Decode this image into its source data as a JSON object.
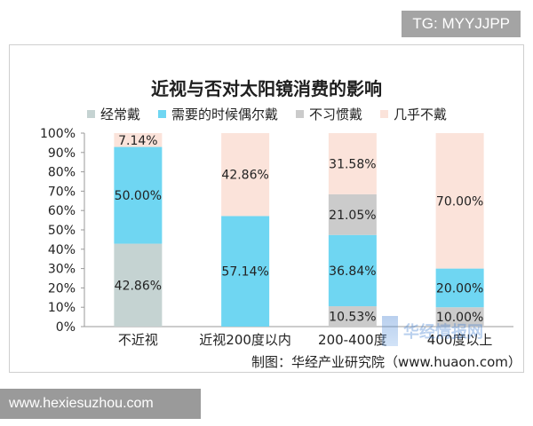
{
  "badge": "TG: MYYJJPP",
  "footer_site": "www.hexiesuzhou.com",
  "source_text": "制图：华经产业研究院（www.huaon.com）",
  "watermark_text": "华经情报网",
  "colors": {
    "often": "#c5d3d2",
    "need": "#6fd6f2",
    "not_used": "#cbcbcb",
    "rarely": "#fbe3da"
  },
  "chart_data": {
    "type": "bar",
    "stacked": true,
    "title": "近视与否对太阳镜消费的影响",
    "categories": [
      "不近视",
      "近视200度以内",
      "200-400度",
      "400度以上"
    ],
    "series": [
      {
        "name": "经常戴",
        "values": [
          42.86,
          0,
          0,
          0
        ]
      },
      {
        "name": "需要的时候偶尔戴",
        "values": [
          50.0,
          57.14,
          36.84,
          20.0
        ]
      },
      {
        "name": "不习惯戴",
        "values": [
          0,
          0,
          21.05,
          0
        ]
      },
      {
        "name": "几乎不戴",
        "values": [
          7.14,
          42.86,
          31.58,
          70.0
        ]
      }
    ],
    "extra_series_note_removed": true,
    "bottom_gray": [
      0,
      0,
      10.53,
      10.0
    ],
    "labels": [
      [
        "42.86%",
        "50.00%",
        "",
        "7.14%"
      ],
      [
        "",
        "57.14%",
        "",
        "42.86%"
      ],
      [
        "10.53%",
        "36.84%",
        "21.05%",
        "31.58%"
      ],
      [
        "10.00%",
        "20.00%",
        "",
        "70.00%"
      ]
    ],
    "yticks": [
      "0%",
      "10%",
      "20%",
      "30%",
      "40%",
      "50%",
      "60%",
      "70%",
      "80%",
      "90%",
      "100%"
    ],
    "ylim": [
      0,
      100
    ],
    "legend_position": "top"
  }
}
